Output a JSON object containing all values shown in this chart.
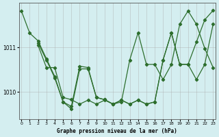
{
  "title": "Graphe pression niveau de la mer (hPa)",
  "bg_color": "#d4eef0",
  "grid_color": "#aaaaaa",
  "line_color": "#2d6e2d",
  "x_ticks": [
    0,
    1,
    2,
    3,
    4,
    5,
    6,
    7,
    8,
    9,
    10,
    11,
    12,
    13,
    14,
    15,
    16,
    17,
    18,
    19,
    20,
    21,
    22,
    23
  ],
  "y_ticks": [
    1010,
    1011
  ],
  "ylim": [
    1009.4,
    1012.0
  ],
  "xlim": [
    -0.3,
    23.3
  ],
  "series": [
    [
      1011.8,
      1011.3,
      1011.15,
      1010.75,
      1010.35,
      1009.8,
      1009.7,
      1010.55,
      1010.55,
      1009.9,
      1009.85,
      1009.75,
      1009.85,
      1009.75,
      1009.85,
      1009.75,
      1009.8,
      1010.75,
      1011.35,
      1010.65,
      1010.65,
      1011.15,
      1011.65,
      1011.85
    ],
    [
      1011.15,
      1011.15,
      1010.75,
      1010.35,
      1009.8,
      1009.65,
      1010.55,
      1010.55,
      1009.9,
      1009.85,
      1009.75,
      1009.85,
      1009.75,
      1009.85,
      1009.75,
      1009.8,
      1010.75,
      1011.35,
      1010.65,
      1010.65,
      1010.3,
      1010.65,
      1011.55,
      1011.85
    ],
    [
      1011.15,
      1011.0,
      1010.55,
      1010.55,
      1009.9,
      1009.85,
      1009.75,
      1009.85,
      1009.75,
      1009.85,
      1009.75,
      1009.8,
      1010.75,
      1011.35,
      1010.65,
      1010.65,
      1010.3,
      1010.65,
      1011.55,
      1011.85,
      1011.55,
      1011.0,
      1010.55,
      1011.3
    ]
  ]
}
